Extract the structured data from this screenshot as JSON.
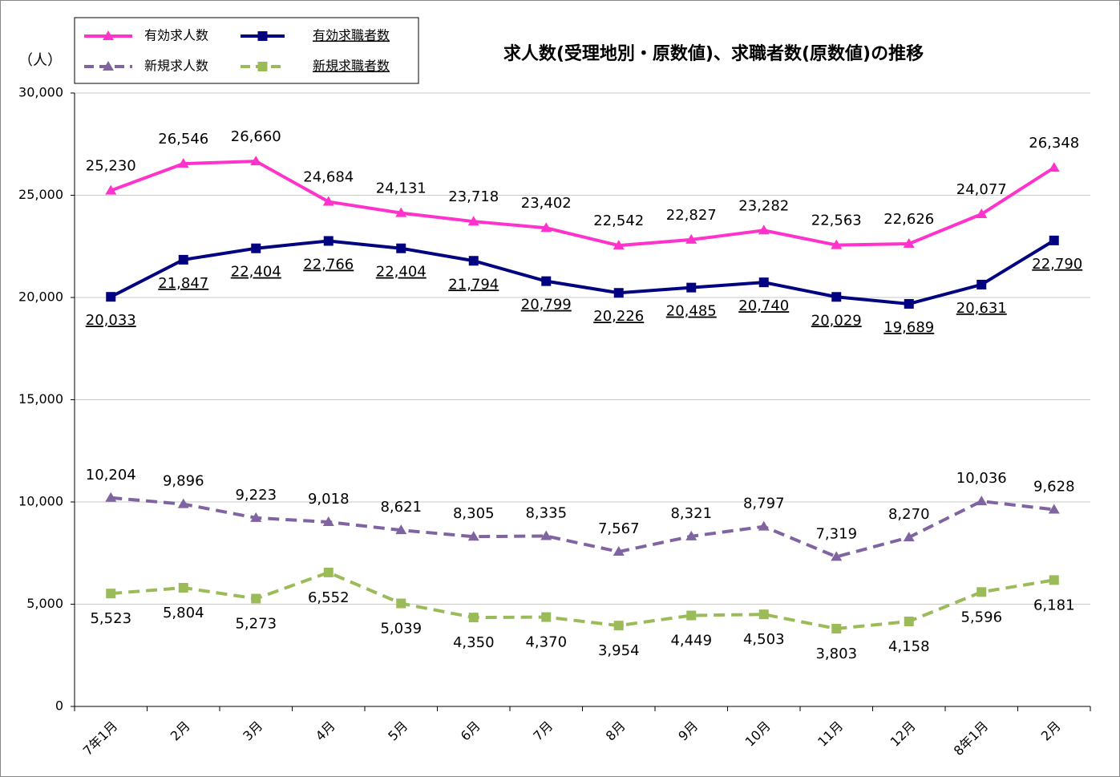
{
  "chart_data": {
    "type": "line",
    "title": "求人数(受理地別・原数値)、求職者数(原数値)の推移",
    "y_unit": "（人）",
    "categories": [
      "7年1月",
      "2月",
      "3月",
      "4月",
      "5月",
      "6月",
      "7月",
      "8月",
      "9月",
      "10月",
      "11月",
      "12月",
      "8年1月",
      "2月"
    ],
    "ylim": [
      0,
      30000
    ],
    "yticks": [
      0,
      {
        "value": 5000,
        "label": "5,000"
      },
      {
        "value": 10000,
        "label": "10,000"
      },
      {
        "value": 15000,
        "label": "15,000"
      },
      {
        "value": 20000,
        "label": "20,000"
      },
      {
        "value": 25000,
        "label": "25,000"
      },
      {
        "value": 30000,
        "label": "30,000"
      }
    ],
    "grid": true,
    "series": [
      {
        "name": "有効求人数",
        "color": "#ff33cc",
        "line_style": "solid",
        "marker": "triangle",
        "values": [
          25230,
          26546,
          26660,
          24684,
          24131,
          23718,
          23402,
          22542,
          22827,
          23282,
          22563,
          22626,
          24077,
          26348
        ],
        "value_labels": [
          "25,230",
          "26,546",
          "26,660",
          "24,684",
          "24,131",
          "23,718",
          "23,402",
          "22,542",
          "22,827",
          "23,282",
          "22,563",
          "22,626",
          "24,077",
          "26,348"
        ]
      },
      {
        "name": "有効求職者数",
        "color": "#000080",
        "line_style": "solid",
        "marker": "square",
        "values": [
          20033,
          21847,
          22404,
          22766,
          22404,
          21794,
          20799,
          20226,
          20485,
          20740,
          20029,
          19689,
          20631,
          22790
        ],
        "value_labels": [
          "20,033",
          "21,847",
          "22,404",
          "22,766",
          "22,404",
          "21,794",
          "20,799",
          "20,226",
          "20,485",
          "20,740",
          "20,029",
          "19,689",
          "20,631",
          "22,790"
        ]
      },
      {
        "name": "新規求人数",
        "color": "#8064a2",
        "line_style": "dashed",
        "marker": "triangle",
        "values": [
          10204,
          9896,
          9223,
          9018,
          8621,
          8305,
          8335,
          7567,
          8321,
          8797,
          7319,
          8270,
          10036,
          9628
        ],
        "value_labels": [
          "10,204",
          "9,896",
          "9,223",
          "9,018",
          "8,621",
          "8,305",
          "8,335",
          "7,567",
          "8,321",
          "8,797",
          "7,319",
          "8,270",
          "10,036",
          "9,628"
        ]
      },
      {
        "name": "新規求職者数",
        "color": "#9bbb59",
        "line_style": "dashed",
        "marker": "square",
        "values": [
          5523,
          5804,
          5273,
          6552,
          5039,
          4350,
          4370,
          3954,
          4449,
          4503,
          3803,
          4158,
          5596,
          6181
        ],
        "value_labels": [
          "5,523",
          "5,804",
          "5,273",
          "6,552",
          "5,039",
          "4,350",
          "4,370",
          "3,954",
          "4,449",
          "4,503",
          "3,803",
          "4,158",
          "5,596",
          "6,181"
        ]
      }
    ]
  }
}
